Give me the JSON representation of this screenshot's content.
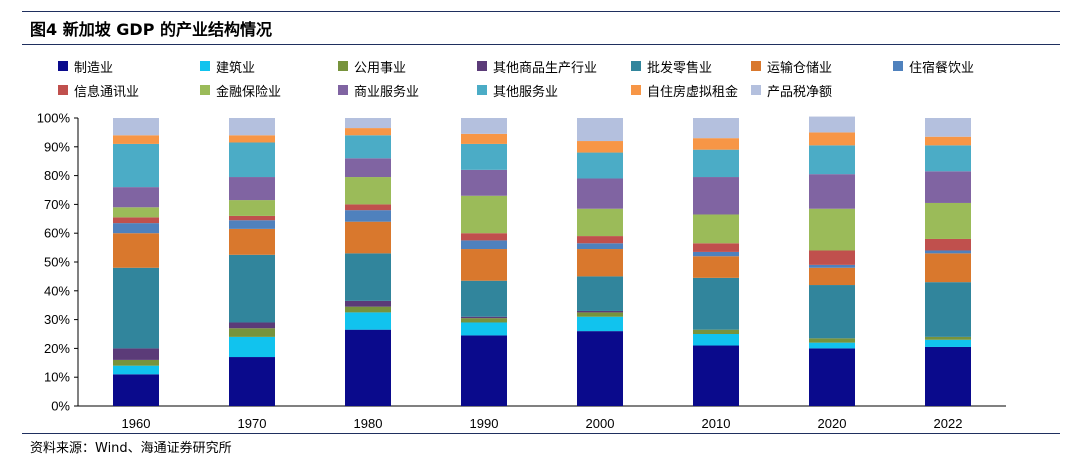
{
  "figure_title": "图4 新加坡 GDP 的产业结构情况",
  "source": "资料来源：Wind、海通证券研究所",
  "chart_data": {
    "type": "bar",
    "stacked": true,
    "categories": [
      "1960",
      "1970",
      "1980",
      "1990",
      "2000",
      "2010",
      "2020",
      "2022"
    ],
    "yticks": [
      "0%",
      "10%",
      "20%",
      "30%",
      "40%",
      "50%",
      "60%",
      "70%",
      "80%",
      "90%",
      "100%"
    ],
    "ylim": [
      0,
      100
    ],
    "legend_position": "top",
    "series": [
      {
        "name": "制造业",
        "color": "#0a0a8c",
        "values": [
          11,
          17,
          26.5,
          24.5,
          26,
          21,
          20,
          20.5
        ]
      },
      {
        "name": "建筑业",
        "color": "#11c3ee",
        "values": [
          3,
          7,
          6,
          4.5,
          5,
          4,
          2,
          2.5
        ]
      },
      {
        "name": "公用事业",
        "color": "#77933c",
        "values": [
          2,
          3,
          2,
          1.5,
          1.5,
          1.5,
          1.5,
          1
        ]
      },
      {
        "name": "其他商品生产行业",
        "color": "#5b3b78",
        "values": [
          4,
          2,
          2,
          0.5,
          0.5,
          0,
          0,
          0
        ]
      },
      {
        "name": "批发零售业",
        "color": "#31859c",
        "values": [
          28,
          23.5,
          16.5,
          12.5,
          12,
          18,
          18.5,
          19
        ]
      },
      {
        "name": "运输仓储业",
        "color": "#d9782d",
        "values": [
          12,
          9,
          11,
          11,
          9.5,
          7.5,
          6,
          10
        ]
      },
      {
        "name": "住宿餐饮业",
        "color": "#4f81bd",
        "values": [
          3.5,
          3,
          4,
          3,
          2,
          1.5,
          1,
          1
        ]
      },
      {
        "name": "信息通讯业",
        "color": "#c0504d",
        "values": [
          2,
          1.5,
          2,
          2.5,
          2.5,
          3,
          5,
          4
        ]
      },
      {
        "name": "金融保险业",
        "color": "#9bbb59",
        "values": [
          3.5,
          5.5,
          9.5,
          13,
          9.5,
          10,
          14.5,
          12.5
        ]
      },
      {
        "name": "商业服务业",
        "color": "#8064a2",
        "values": [
          7,
          8,
          6.5,
          9,
          10.5,
          13,
          12,
          11
        ]
      },
      {
        "name": "其他服务业",
        "color": "#4bacc6",
        "values": [
          15,
          12,
          8,
          9,
          9,
          9.5,
          10,
          9
        ]
      },
      {
        "name": "自住房虚拟租金",
        "color": "#f79646",
        "values": [
          3,
          2.5,
          2.5,
          3.5,
          4,
          4,
          4.5,
          3
        ]
      },
      {
        "name": "产品税净额",
        "color": "#b4c0de",
        "values": [
          6,
          6,
          3.5,
          5.5,
          8,
          7,
          5.5,
          6.5
        ]
      }
    ]
  }
}
